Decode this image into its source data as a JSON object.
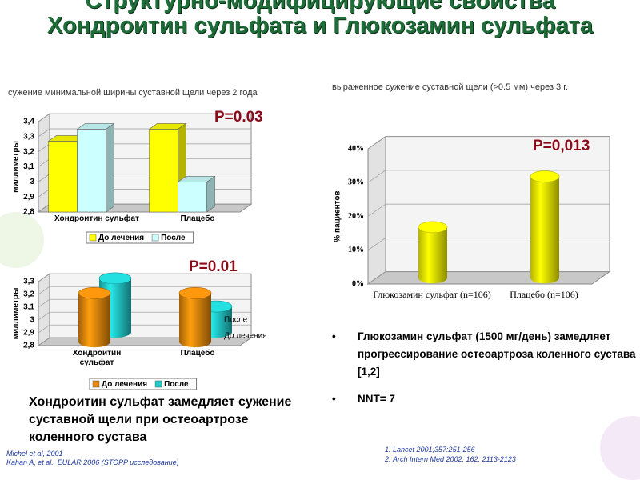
{
  "title": "Структурно-модифицирующие свойства Хондроитин сульфата и Глюкозамин сульфата",
  "conclusion": "Хондроитин сульфат замедляет сужение суставной щели при остеоартрозе коленного сустава",
  "bullets": [
    "Глюкозамин сульфат (1500 мг/день) замедляет прогрессирование остеоартроза коленного сустава [1,2]",
    "NNT= 7"
  ],
  "references_left": [
    "Michel et al, 2001",
    "Kahan A, et al., EULAR 2006 (STOPP исследование)"
  ],
  "references_right": [
    "Lancet 2001;357:251-256",
    "Arch Intern Med 2002; 162: 2113-2123"
  ],
  "chart_data": [
    {
      "type": "bar3d",
      "title": "сужение минимальной ширины суставной щели через 2 года",
      "ylabel": "миллиметры",
      "annotation": "P=0.03",
      "categories": [
        "Хондроитин сульфат",
        "Плацебо"
      ],
      "series": [
        {
          "name": "До лечения",
          "color": "#ffff00",
          "values": [
            3.27,
            3.35
          ]
        },
        {
          "name": "После",
          "color": "#ccffff",
          "values": [
            3.35,
            3.0
          ]
        }
      ],
      "ylim": [
        2.8,
        3.4
      ],
      "yticks": [
        {
          "value": 2.8,
          "label": "2,8"
        },
        {
          "value": 2.9,
          "label": "2,9"
        },
        3,
        {
          "value": 3.1,
          "label": "3,1"
        },
        {
          "value": 3.2,
          "label": "3,2"
        },
        {
          "value": 3.3,
          "label": "3,3"
        },
        {
          "value": 3.4,
          "label": "3,4"
        }
      ],
      "legend": "bottom"
    },
    {
      "type": "cylinder3d",
      "ylabel": "миллиметры",
      "annotation": "P=0.01",
      "categories": [
        "Хондроитин сульфат",
        "Плацебо"
      ],
      "series": [
        {
          "name": "До лечения",
          "color": "#e88a0c",
          "values": [
            3.18,
            3.18
          ]
        },
        {
          "name": "После",
          "color": "#22cccc",
          "values": [
            3.22,
            3.0
          ]
        }
      ],
      "ylim": [
        2.8,
        3.3
      ],
      "yticks": [
        {
          "value": 2.8,
          "label": "2,8"
        },
        {
          "value": 2.9,
          "label": "2,9"
        },
        3,
        {
          "value": 3.1,
          "label": "3,1"
        },
        {
          "value": 3.2,
          "label": "3,2"
        },
        {
          "value": 3.3,
          "label": "3,3"
        }
      ],
      "legend": "bottom",
      "depth_labels": [
        "После",
        "До лечения"
      ]
    },
    {
      "type": "cylinder3d",
      "title": "выраженное  сужение суставной щели (>0.5 мм) через 3 г.",
      "ylabel": "% пациентов",
      "annotation": "P=0,013",
      "categories": [
        "Глюкозамин сульфат (n=106)",
        "Плацебо (n=106)"
      ],
      "values": [
        15,
        30
      ],
      "color": "#ffff00",
      "ylim": [
        0,
        40
      ],
      "yticks": [
        {
          "value": 0,
          "label": "0%"
        },
        {
          "value": 10,
          "label": "10%"
        },
        {
          "value": 20,
          "label": "20%"
        },
        {
          "value": 30,
          "label": "30%"
        },
        {
          "value": 40,
          "label": "40%"
        }
      ]
    }
  ]
}
